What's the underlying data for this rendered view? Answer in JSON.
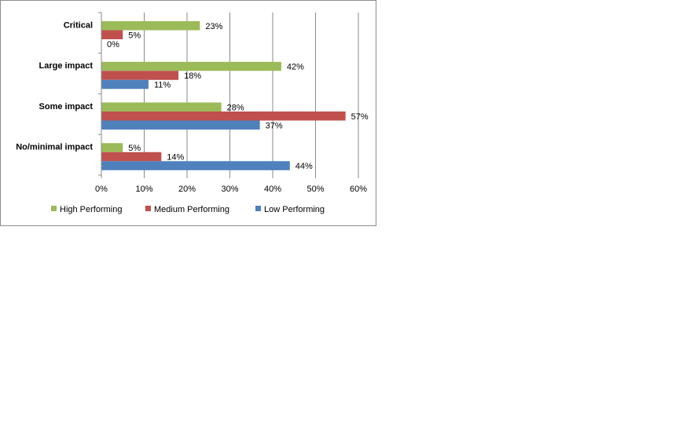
{
  "chart_data": {
    "type": "bar",
    "orientation": "horizontal",
    "categories": [
      "Critical",
      "Large impact",
      "Some impact",
      "No/minimal impact"
    ],
    "series": [
      {
        "name": "High Performing",
        "color": "#9bbb59",
        "values": [
          23,
          42,
          28,
          5
        ]
      },
      {
        "name": "Medium Performing",
        "color": "#c0504d",
        "values": [
          5,
          18,
          57,
          14
        ]
      },
      {
        "name": "Low Performing",
        "color": "#4f81bd",
        "values": [
          0,
          11,
          37,
          44
        ]
      }
    ],
    "data_label_format": "{v}%",
    "xlim": [
      0,
      60
    ],
    "xticks": [
      0,
      10,
      20,
      30,
      40,
      50,
      60
    ],
    "xtick_labels": [
      "0%",
      "10%",
      "20%",
      "30%",
      "40%",
      "50%",
      "60%"
    ],
    "grid": "vertical",
    "legend_position": "bottom",
    "title": "",
    "xlabel": "",
    "ylabel": ""
  }
}
